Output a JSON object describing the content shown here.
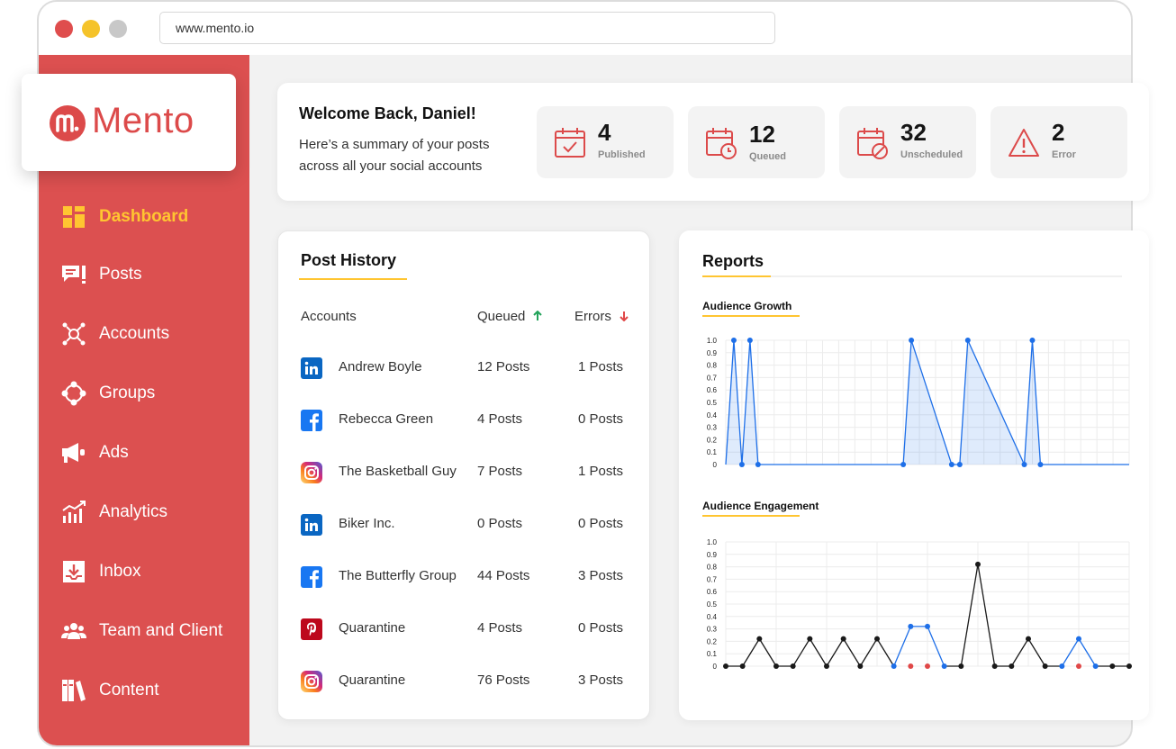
{
  "browser": {
    "url": "www.mento.io"
  },
  "brand": {
    "name": "Mento",
    "accent": "#dc5050",
    "highlight": "#ffc531"
  },
  "sidebar": {
    "items": [
      {
        "label": "Dashboard",
        "icon": "dashboard-icon",
        "active": true
      },
      {
        "label": "Posts",
        "icon": "posts-icon"
      },
      {
        "label": "Accounts",
        "icon": "accounts-icon"
      },
      {
        "label": "Groups",
        "icon": "groups-icon"
      },
      {
        "label": "Ads",
        "icon": "megaphone-icon"
      },
      {
        "label": "Analytics",
        "icon": "analytics-icon"
      },
      {
        "label": "Inbox",
        "icon": "inbox-icon"
      },
      {
        "label": "Team and Client",
        "icon": "team-icon"
      },
      {
        "label": "Content",
        "icon": "content-icon"
      }
    ]
  },
  "welcome": {
    "title": "Welcome Back, Daniel!",
    "line1": "Here’s a summary of your posts",
    "line2": "across all your social accounts"
  },
  "stats": [
    {
      "value": "4",
      "label": "Published",
      "icon": "calendar-check-icon"
    },
    {
      "value": "12",
      "label": "Queued",
      "icon": "calendar-clock-icon"
    },
    {
      "value": "32",
      "label": "Unscheduled",
      "icon": "calendar-blocked-icon"
    },
    {
      "value": "2",
      "label": "Error",
      "icon": "warning-icon"
    }
  ],
  "post_history": {
    "title": "Post History",
    "columns": {
      "accounts": "Accounts",
      "queued": "Queued",
      "errors": "Errors"
    },
    "rows": [
      {
        "platform": "linkedin",
        "name": "Andrew Boyle",
        "queued": "12 Posts",
        "errors": "1 Posts"
      },
      {
        "platform": "facebook",
        "name": "Rebecca Green",
        "queued": "4 Posts",
        "errors": "0 Posts"
      },
      {
        "platform": "instagram",
        "name": "The Basketball Guy",
        "queued": "7 Posts",
        "errors": "1 Posts"
      },
      {
        "platform": "linkedin",
        "name": "Biker Inc.",
        "queued": "0 Posts",
        "errors": "0 Posts"
      },
      {
        "platform": "facebook",
        "name": "The Butterfly Group",
        "queued": "44 Posts",
        "errors": "3 Posts"
      },
      {
        "platform": "pinterest",
        "name": "Quarantine",
        "queued": "4 Posts",
        "errors": "0 Posts"
      },
      {
        "platform": "instagram",
        "name": "Quarantine",
        "queued": "76 Posts",
        "errors": "3 Posts"
      }
    ]
  },
  "reports": {
    "title": "Reports"
  },
  "chart_data": [
    {
      "type": "area",
      "title": "Audience Growth",
      "ylim": [
        0,
        1.0
      ],
      "yticks": [
        "0",
        "0.1",
        "0.2",
        "0.3",
        "0.4",
        "0.5",
        "0.6",
        "0.7",
        "0.8",
        "0.9",
        "1.0"
      ],
      "x": [
        0,
        0.5,
        1,
        1.5,
        2,
        11,
        11.5,
        14,
        14.5,
        15,
        18.5,
        19,
        19.5,
        25
      ],
      "values": [
        0,
        1,
        0,
        1,
        0,
        0,
        1,
        0,
        0,
        1,
        0,
        1,
        0,
        0
      ],
      "color": "#1e6fe8"
    },
    {
      "type": "line",
      "title": "Audience Engagement",
      "ylim": [
        0,
        1.0
      ],
      "yticks": [
        "0",
        "0.1",
        "0.2",
        "0.3",
        "0.4",
        "0.5",
        "0.6",
        "0.7",
        "0.8",
        "0.9",
        "1.0"
      ],
      "x": [
        0,
        1,
        2,
        3,
        4,
        5,
        6,
        7,
        8,
        9,
        10,
        11,
        12,
        13,
        14,
        15,
        16,
        17,
        18,
        19,
        20,
        21,
        22,
        23,
        24
      ],
      "values": [
        0,
        0,
        0.22,
        0,
        0,
        0.22,
        0,
        0.22,
        0,
        0.22,
        0,
        0.32,
        0.32,
        0,
        0,
        0.82,
        0,
        0,
        0.22,
        0,
        0,
        0.22,
        0,
        0,
        0
      ],
      "highlight": [
        {
          "x": 11,
          "y": 0.32
        },
        {
          "x": 12,
          "y": 0.32
        },
        {
          "x": 21,
          "y": 0.22
        }
      ],
      "colors": {
        "primary": "#1a1a1a",
        "highlight": "#1e6fe8",
        "error": "#e04848"
      }
    }
  ]
}
